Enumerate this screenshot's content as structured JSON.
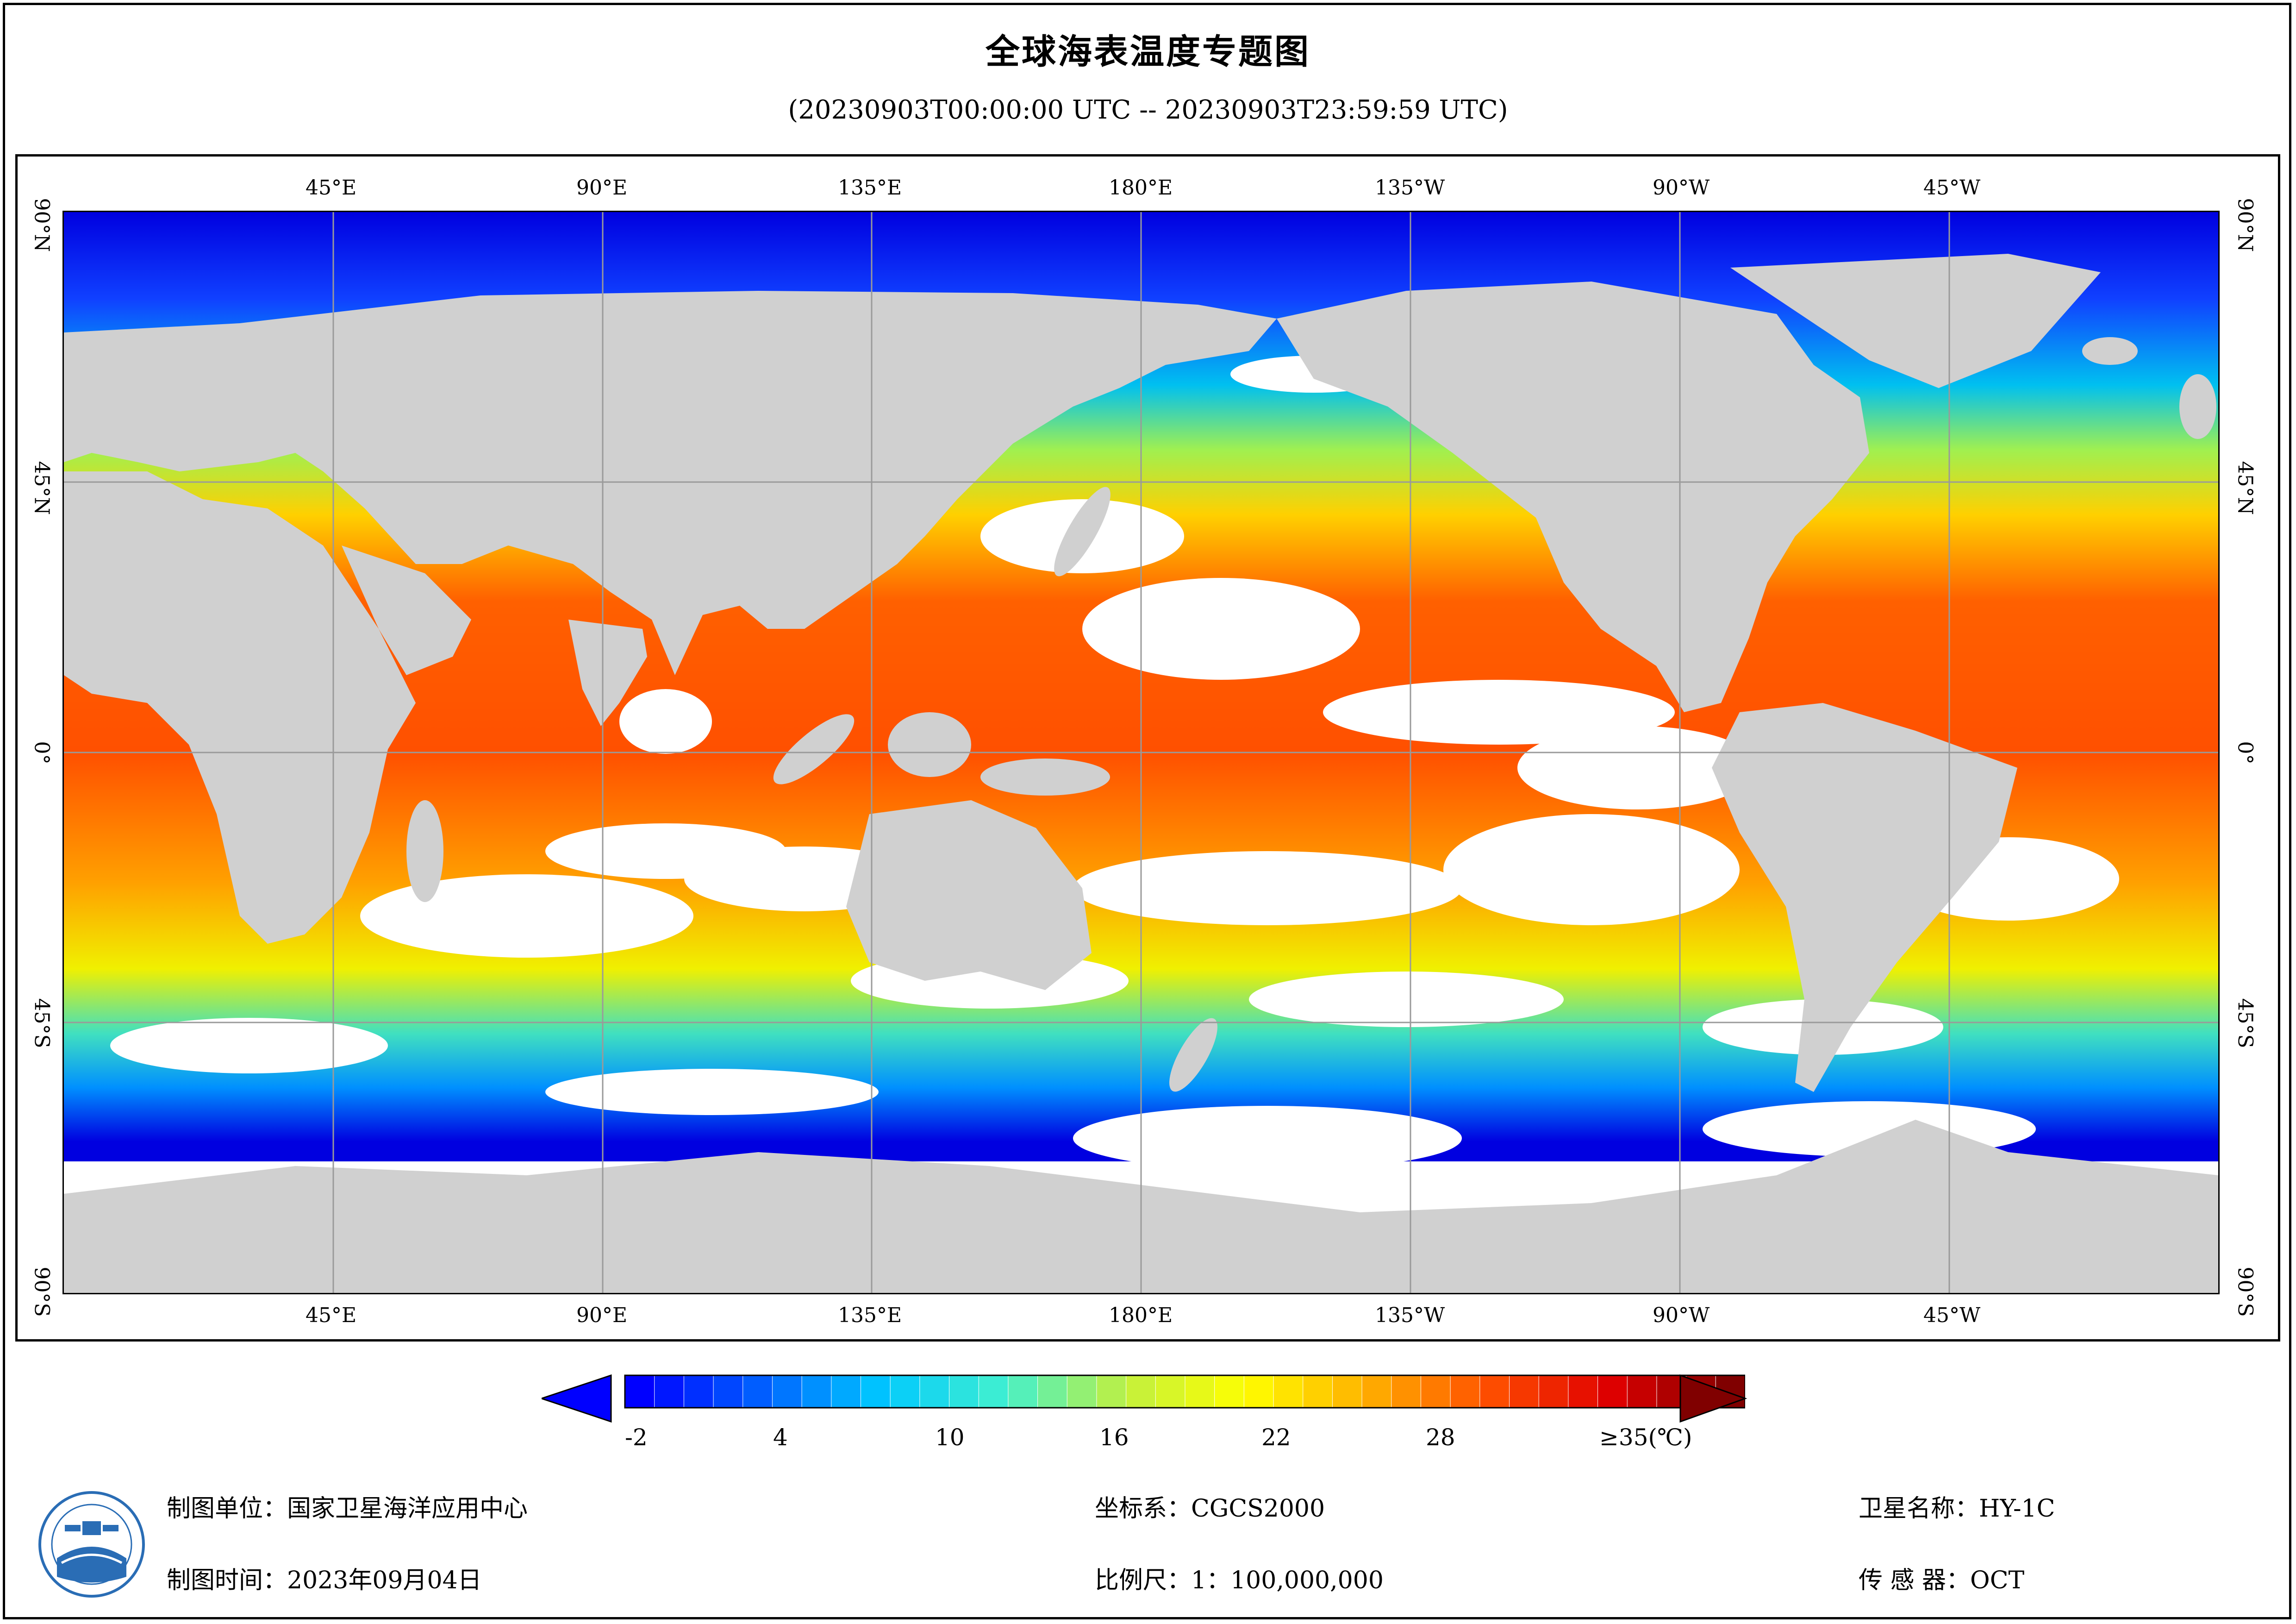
{
  "title": "全球海表温度专题图",
  "subtitle": "(20230903T00:00:00 UTC -- 20230903T23:59:59 UTC)",
  "map": {
    "top_ticks": [
      "45°E",
      "90°E",
      "135°E",
      "180°E",
      "135°W",
      "90°W",
      "45°W"
    ],
    "bottom_ticks": [
      "45°E",
      "90°E",
      "135°E",
      "180°E",
      "135°W",
      "90°W",
      "45°W"
    ],
    "left_ticks": [
      "90°N",
      "45°N",
      "0°",
      "45°S",
      "90°S"
    ],
    "right_ticks": [
      "90°N",
      "45°N",
      "0°",
      "45°S",
      "90°S"
    ],
    "colors": {
      "land": "#d0d0d0",
      "cloud": "#ffffff",
      "graticule": "#9a9a9a"
    }
  },
  "colorbar": {
    "labels": [
      "-2",
      "4",
      "10",
      "16",
      "22",
      "28",
      "≥35(℃)"
    ],
    "min": -2,
    "max": 35,
    "colors": [
      "#0000ff",
      "#0060ff",
      "#00c8ff",
      "#40f0d0",
      "#c0f040",
      "#ffff00",
      "#ffb000",
      "#ff5000",
      "#e00000",
      "#800000"
    ],
    "under_color": "#0000ff",
    "over_color": "#800000"
  },
  "footer": {
    "unit": "制图单位：国家卫星海洋应用中心",
    "time": "制图时间：2023年09月04日",
    "crs": "坐标系：CGCS2000",
    "scale": "比例尺：1：100,000,000",
    "satellite": "卫星名称：HY-1C",
    "sensor": "传 感 器：OCT"
  }
}
